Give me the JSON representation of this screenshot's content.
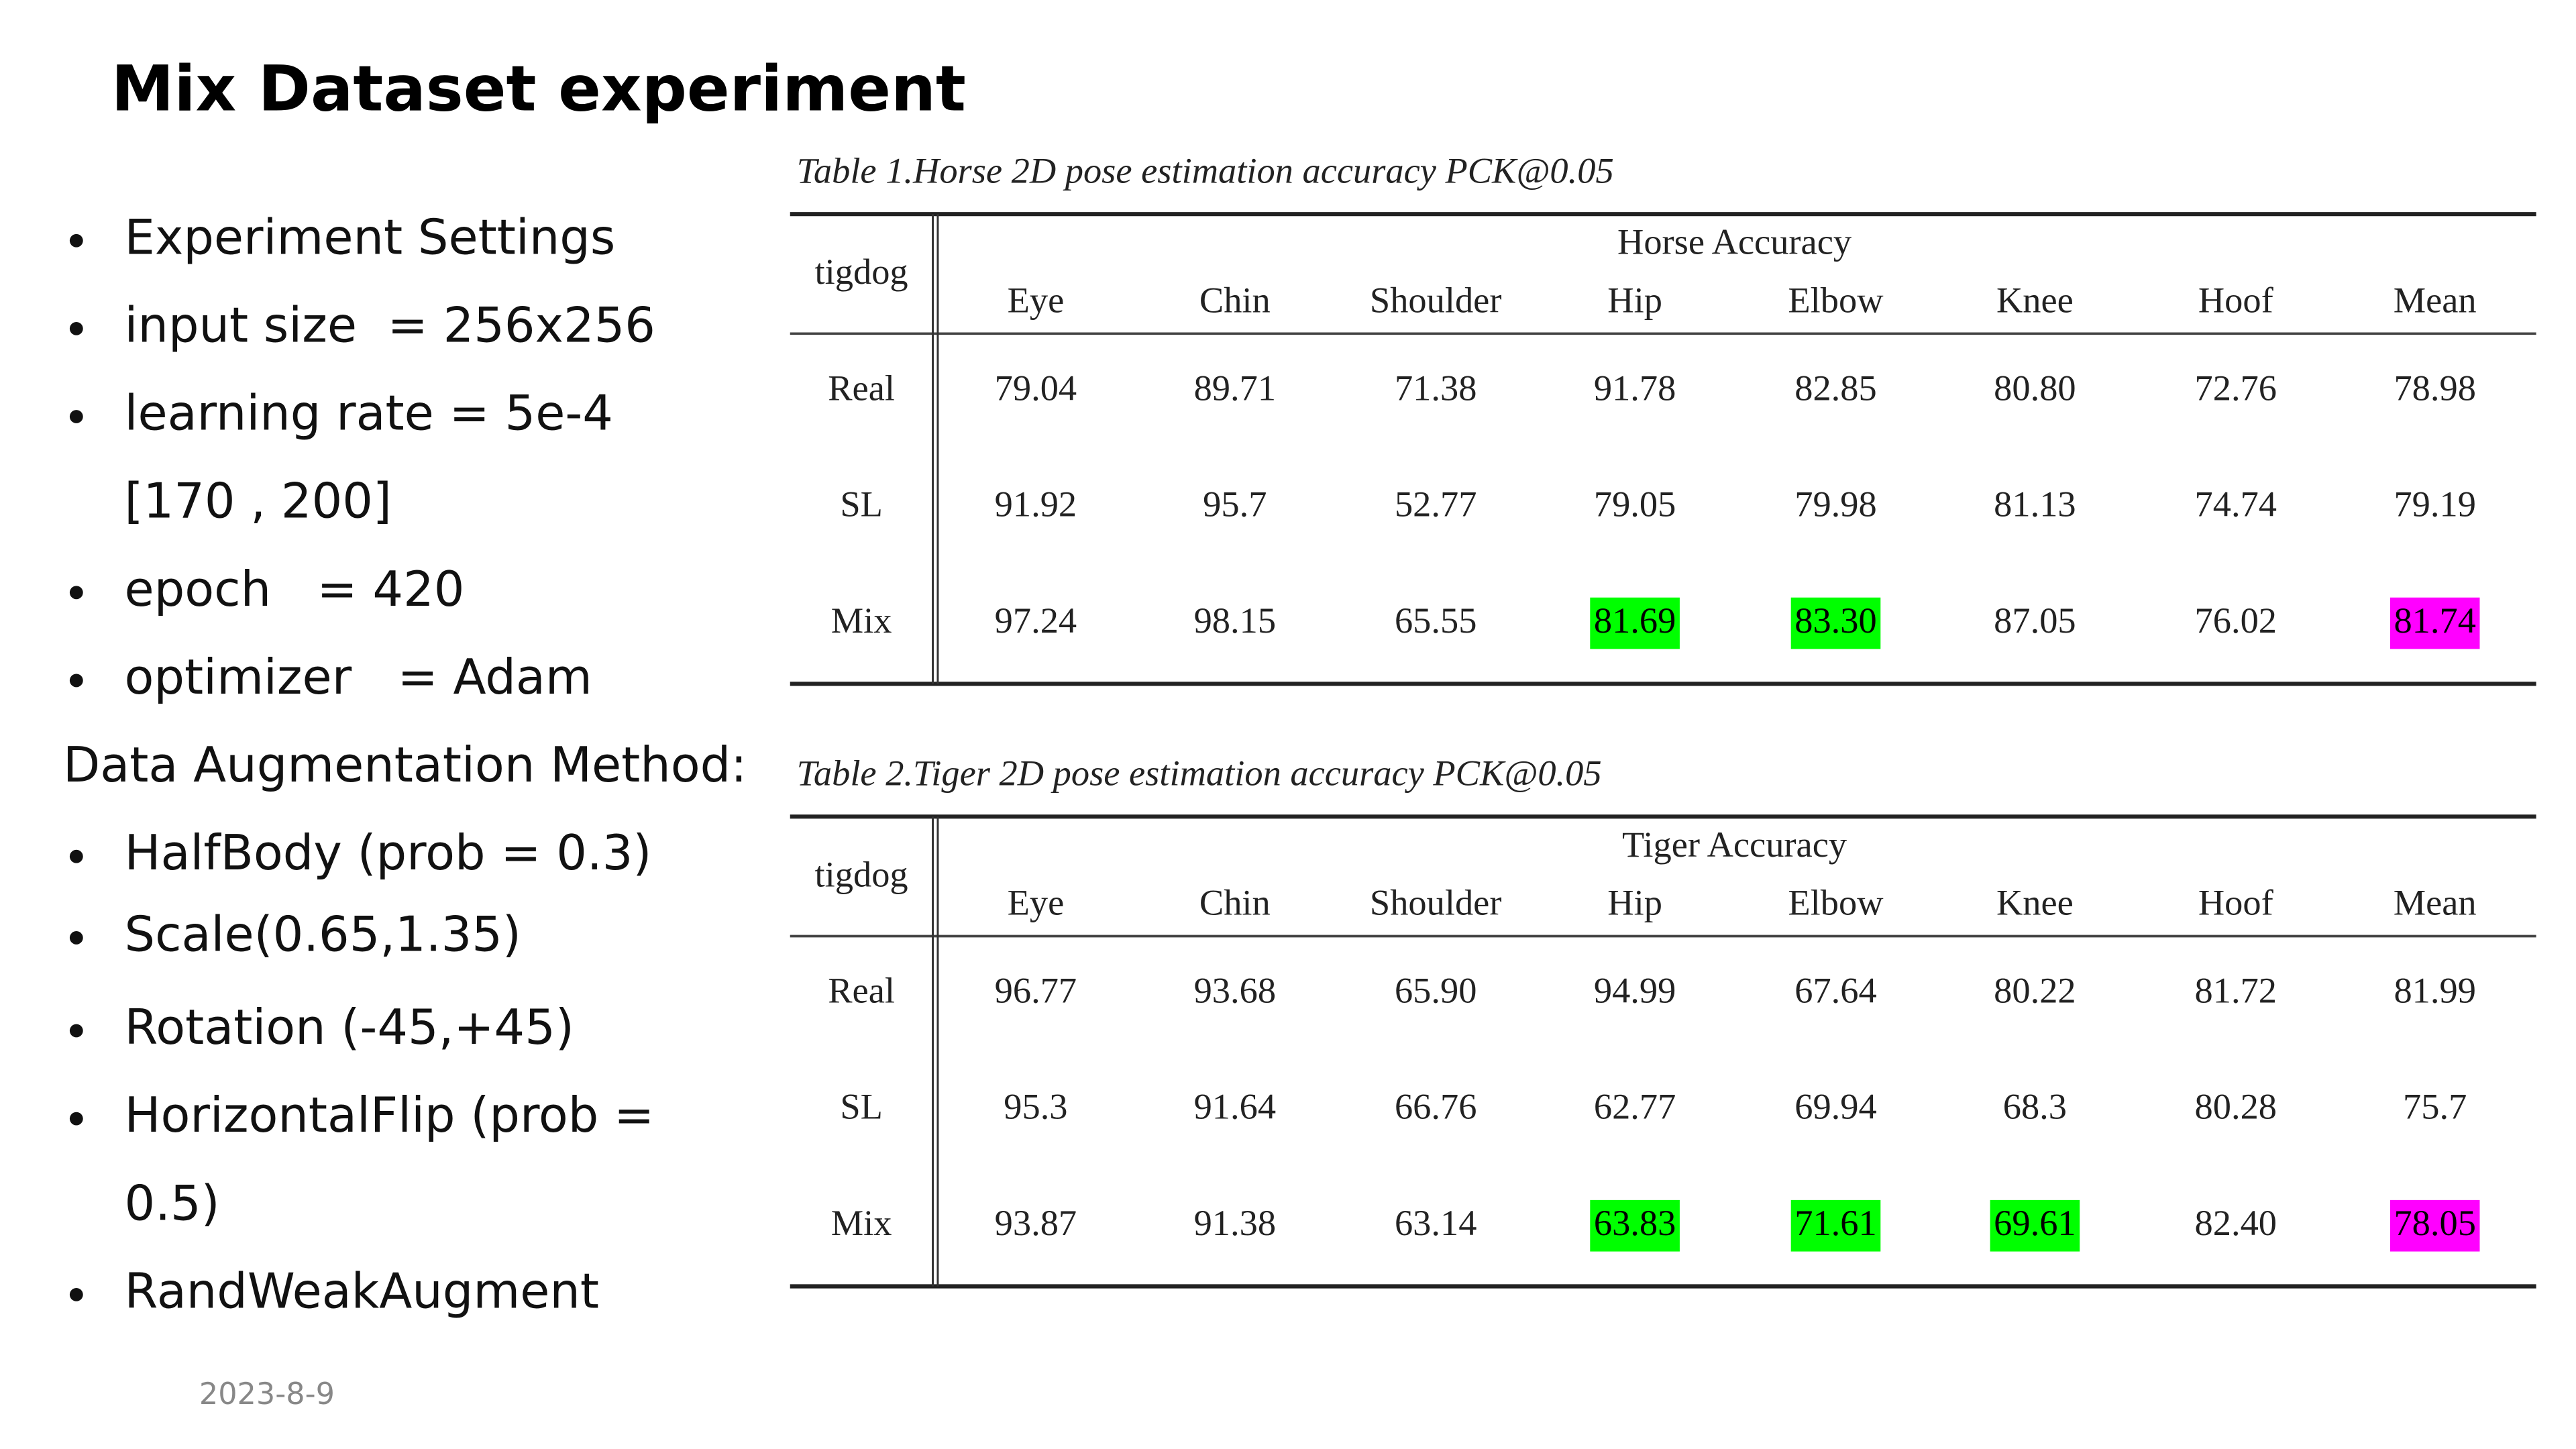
{
  "header": {
    "title": "Mix Dataset experiment"
  },
  "left_items": [
    {
      "text": "Experiment Settings",
      "kind": "bullet"
    },
    {
      "text": "input size  = 256x256",
      "kind": "bullet"
    },
    {
      "text": "learning rate = 5e-4",
      "kind": "bullet"
    },
    {
      "text": "[170 , 200]",
      "kind": "continuation"
    },
    {
      "text": "epoch   = 420",
      "kind": "bullet"
    },
    {
      "text": "optimizer   = Adam",
      "kind": "bullet"
    },
    {
      "text": "Data Augmentation Method:",
      "kind": "heading"
    },
    {
      "text": "HalfBody (prob = 0.3)",
      "kind": "bullet"
    },
    {
      "text": "Scale(0.65,1.35)",
      "kind": "bullet"
    },
    {
      "text": "Rotation (-45,+45)",
      "kind": "bullet"
    },
    {
      "text": "HorizontalFlip (prob =",
      "kind": "bullet"
    },
    {
      "text": "0.5)",
      "kind": "continuation"
    },
    {
      "text": "RandWeakAugment",
      "kind": "bullet"
    }
  ],
  "tables": [
    {
      "caption": "Table 1.Horse 2D pose estimation accuracy PCK@0.05",
      "corner": "tigdog",
      "group_header": "Horse Accuracy",
      "columns": [
        "Eye",
        "Chin",
        "Shoulder",
        "Hip",
        "Elbow",
        "Knee",
        "Hoof",
        "Mean"
      ],
      "rows": [
        {
          "label": "Real",
          "cells": [
            "79.04",
            "89.71",
            "71.38",
            "91.78",
            "82.85",
            "80.80",
            "72.76",
            "78.98"
          ]
        },
        {
          "label": "SL",
          "cells": [
            "91.92",
            "95.7",
            "52.77",
            "79.05",
            "79.98",
            "81.13",
            "74.74",
            "79.19"
          ]
        },
        {
          "label": "Mix",
          "cells": [
            "97.24",
            "98.15",
            "65.55",
            {
              "text": "81.69",
              "highlight": "#00ff00"
            },
            {
              "text": "83.30",
              "highlight": "#00ff00"
            },
            "87.05",
            "76.02",
            {
              "text": "81.74",
              "highlight": "#ff00ff"
            }
          ]
        }
      ]
    },
    {
      "caption": "Table 2.Tiger 2D pose estimation accuracy PCK@0.05",
      "corner": "tigdog",
      "group_header": "Tiger Accuracy",
      "columns": [
        "Eye",
        "Chin",
        "Shoulder",
        "Hip",
        "Elbow",
        "Knee",
        "Hoof",
        "Mean"
      ],
      "rows": [
        {
          "label": "Real",
          "cells": [
            "96.77",
            "93.68",
            "65.90",
            "94.99",
            "67.64",
            "80.22",
            "81.72",
            "81.99"
          ]
        },
        {
          "label": "SL",
          "cells": [
            "95.3",
            "91.64",
            "66.76",
            "62.77",
            "69.94",
            "68.3",
            "80.28",
            "75.7"
          ]
        },
        {
          "label": "Mix",
          "cells": [
            "93.87",
            "91.38",
            "63.14",
            {
              "text": "63.83",
              "highlight": "#00ff00"
            },
            {
              "text": "71.61",
              "highlight": "#00ff00"
            },
            {
              "text": "69.61",
              "highlight": "#00ff00"
            },
            "82.40",
            {
              "text": "78.05",
              "highlight": "#ff00ff"
            }
          ]
        }
      ]
    }
  ],
  "footer": {
    "date": "2023-8-9"
  }
}
